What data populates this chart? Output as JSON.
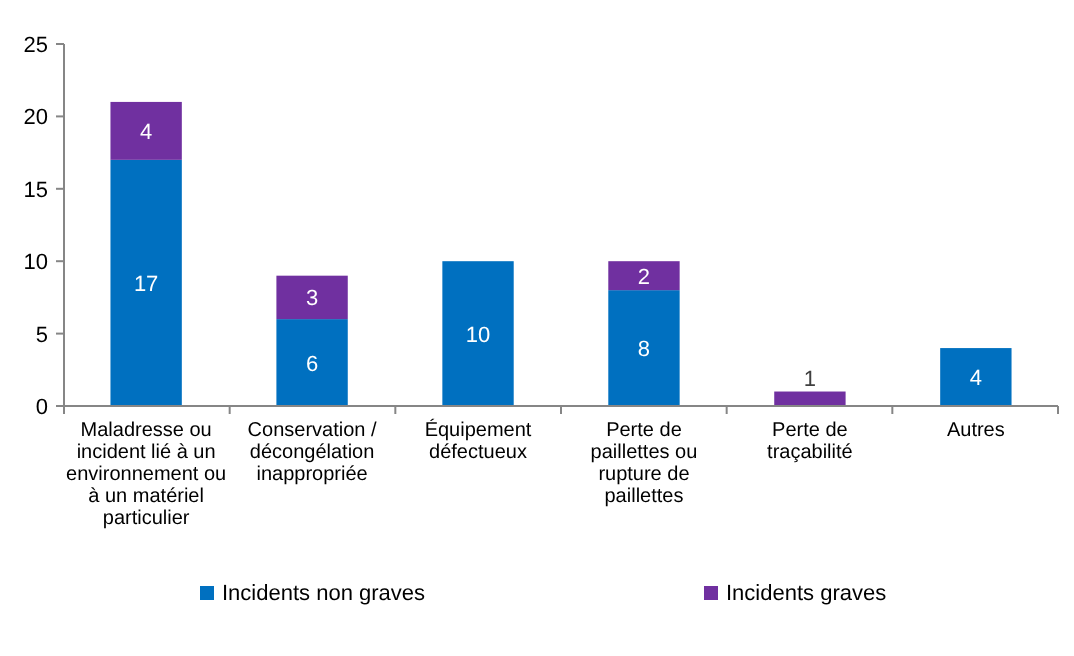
{
  "chart_data": {
    "type": "bar",
    "stacked": true,
    "categories": [
      "Maladresse ou incident lié à un environnement ou à un matériel particulier",
      "Conservation / décongélation inappropriée",
      "Équipement défectueux",
      "Perte de paillettes ou rupture de paillettes",
      "Perte de traçabilité",
      "Autres"
    ],
    "series": [
      {
        "name": "Incidents non graves",
        "color": "#0070c0",
        "values": [
          17,
          6,
          10,
          8,
          0,
          4
        ],
        "value_labels": [
          "17",
          "6",
          "10",
          "8",
          null,
          "4"
        ]
      },
      {
        "name": "Incidents graves",
        "color": "#7030a0",
        "values": [
          4,
          3,
          0,
          2,
          1,
          0
        ],
        "value_labels": [
          "4",
          "3",
          null,
          "2",
          "1",
          null
        ]
      }
    ],
    "ylim": [
      0,
      25
    ],
    "yticks": [
      0,
      5,
      10,
      15,
      20,
      25
    ],
    "grid": false,
    "legend": "bottom"
  }
}
